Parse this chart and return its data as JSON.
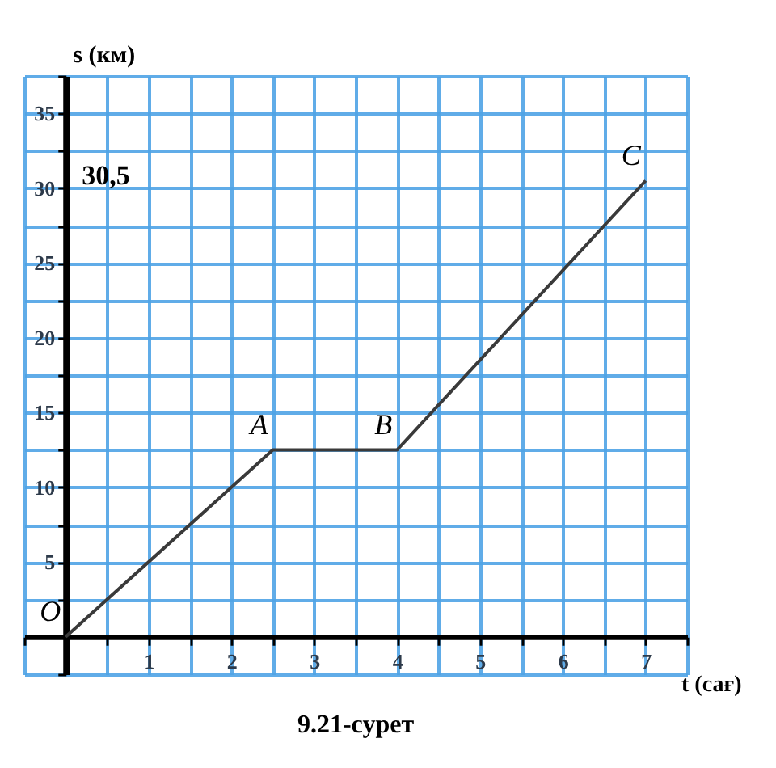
{
  "chart_data": {
    "type": "line",
    "xlabel": "t (сағ)",
    "ylabel": "s (км)",
    "x": [
      0,
      2.5,
      4,
      7
    ],
    "series": [
      {
        "color": "#3a3a3a",
        "values": [
          0,
          12.5,
          12.5,
          30.5
        ]
      }
    ],
    "xlim": [
      -0.5,
      7.5
    ],
    "ylim": [
      -2.5,
      37.5
    ],
    "xticks": [
      {
        "value": -0.5,
        "label": null
      },
      {
        "value": 0,
        "label": null
      },
      {
        "value": 0.5,
        "label": null
      },
      1,
      {
        "value": 1.5,
        "label": null
      },
      2,
      {
        "value": 2.5,
        "label": null
      },
      3,
      {
        "value": 3.5,
        "label": null
      },
      4,
      {
        "value": 4.5,
        "label": null
      },
      5,
      {
        "value": 5.5,
        "label": null
      },
      6,
      {
        "value": 6.5,
        "label": null
      },
      7,
      {
        "value": 7.5,
        "label": null
      }
    ],
    "yticks": [
      {
        "value": -2.5,
        "label": null
      },
      {
        "value": 0,
        "label": null
      },
      {
        "value": 2.5,
        "label": null
      },
      5,
      {
        "value": 7.5,
        "label": null
      },
      10,
      {
        "value": 12.5,
        "label": null
      },
      15,
      {
        "value": 17.5,
        "label": null
      },
      20,
      {
        "value": 22.5,
        "label": null
      },
      25,
      {
        "value": 27.5,
        "label": null
      },
      30,
      {
        "value": 32.5,
        "label": null
      },
      35,
      {
        "value": 37.5,
        "label": null
      }
    ],
    "grid": true,
    "marker": "none",
    "line_style": "solid",
    "annotations": [
      {
        "text": "O",
        "x": 0,
        "y": 0
      },
      {
        "text": "A",
        "x": 2.5,
        "y": 12.5
      },
      {
        "text": "B",
        "x": 4,
        "y": 12.5
      },
      {
        "text": "C",
        "x": 7,
        "y": 30.5
      },
      "30,5",
      "9.21-сурет"
    ]
  }
}
